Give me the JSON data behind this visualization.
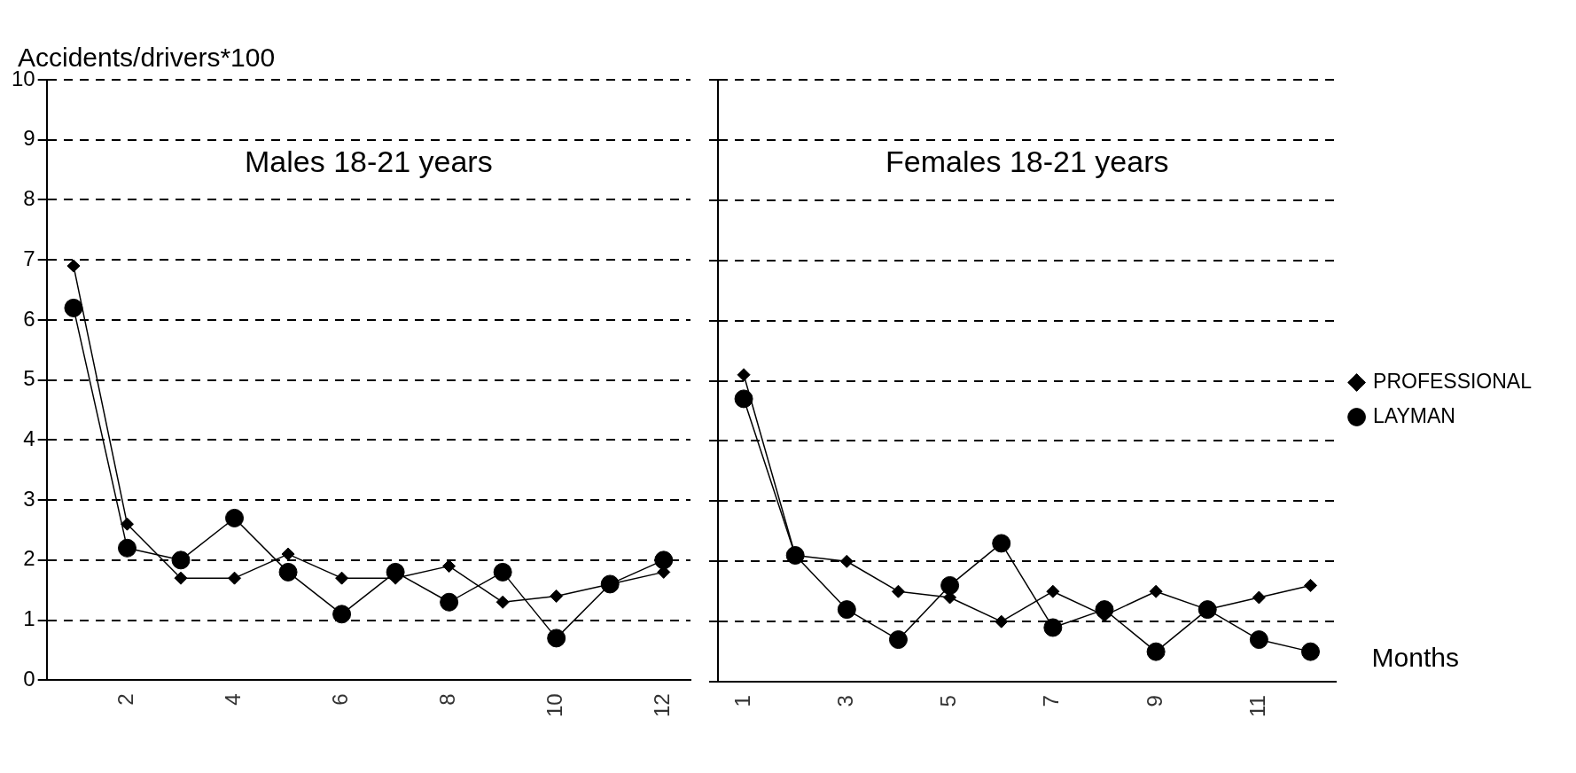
{
  "chart_data": [
    {
      "type": "line",
      "title": "Males 18-21 years",
      "ylabel": "Accidents/drivers*100",
      "categories": [
        null,
        "2",
        null,
        "4",
        null,
        "6",
        null,
        "8",
        null,
        "10",
        null,
        "12"
      ],
      "series": [
        {
          "color": "#000000",
          "marker": "diamond",
          "values": [
            6.9,
            2.6,
            1.7,
            1.7,
            2.1,
            1.7,
            1.7,
            1.9,
            1.3,
            1.4,
            1.6,
            1.8
          ]
        },
        {
          "color": "#000000",
          "marker": "circle",
          "values": [
            6.2,
            2.2,
            2.0,
            2.7,
            1.8,
            1.1,
            1.8,
            1.3,
            1.8,
            0.7,
            1.6,
            2.0
          ]
        }
      ],
      "ylim": [
        0,
        10
      ],
      "yticks": [
        0,
        1,
        2,
        3,
        4,
        5,
        6,
        7,
        8,
        9,
        10
      ],
      "grid": "y"
    },
    {
      "type": "line",
      "title": "Females 18-21 years",
      "xlabel": "Months",
      "categories": [
        "1",
        null,
        "3",
        null,
        "5",
        null,
        "7",
        null,
        "9",
        null,
        "11",
        null
      ],
      "series": [
        {
          "name": "PROFESSIONAL",
          "color": "#000000",
          "marker": "diamond",
          "values": [
            5.1,
            2.1,
            2.0,
            1.5,
            1.4,
            1.0,
            1.5,
            1.1,
            1.5,
            1.2,
            1.4,
            1.6
          ]
        },
        {
          "name": "LAYMAN",
          "color": "#000000",
          "marker": "circle",
          "values": [
            4.7,
            2.1,
            1.2,
            0.7,
            1.6,
            2.3,
            0.9,
            1.2,
            0.5,
            1.2,
            0.7,
            0.5
          ]
        }
      ],
      "ylim": [
        0,
        10
      ],
      "yticks": [
        0,
        1,
        2,
        3,
        4,
        5,
        6,
        7,
        8,
        9,
        10
      ],
      "grid": "y",
      "legend": "right",
      "tick_labels": "x"
    }
  ]
}
